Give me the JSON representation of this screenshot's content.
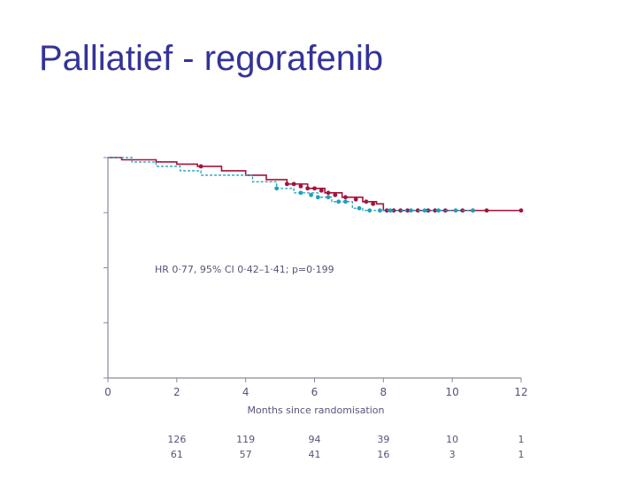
{
  "slide": {
    "title": "Palliatief - regorafenib"
  },
  "chart_data": {
    "type": "line",
    "title": "",
    "xlabel": "Months since randomisation",
    "ylabel": "",
    "xlim": [
      0,
      12
    ],
    "ylim": [
      0,
      1
    ],
    "x_ticks": [
      0,
      2,
      4,
      6,
      8,
      10,
      12
    ],
    "y_ticks": [
      0,
      0.25,
      0.5,
      0.75,
      1
    ],
    "grid": false,
    "legend": "none",
    "annotation": "HR 0·77, 95% CI 0·42–1·41; p=0·199",
    "colors": {
      "regorafenib": "#a3133b",
      "placebo": "#1e9fbf",
      "axis": "#8a8a99"
    },
    "series": [
      {
        "color": "#a3133b",
        "style": "solid",
        "steps": [
          [
            0,
            1.0
          ],
          [
            0.4,
            0.99
          ],
          [
            1.4,
            0.98
          ],
          [
            2.0,
            0.97
          ],
          [
            2.6,
            0.96
          ],
          [
            3.3,
            0.94
          ],
          [
            4.0,
            0.92
          ],
          [
            4.6,
            0.9
          ],
          [
            5.2,
            0.88
          ],
          [
            5.8,
            0.86
          ],
          [
            6.3,
            0.84
          ],
          [
            6.8,
            0.82
          ],
          [
            7.4,
            0.8
          ],
          [
            7.8,
            0.79
          ],
          [
            8.0,
            0.76
          ],
          [
            12.0,
            0.76
          ]
        ],
        "censored": [
          [
            2.7,
            0.96
          ],
          [
            5.2,
            0.88
          ],
          [
            5.4,
            0.88
          ],
          [
            5.6,
            0.87
          ],
          [
            5.8,
            0.86
          ],
          [
            6.0,
            0.86
          ],
          [
            6.2,
            0.85
          ],
          [
            6.4,
            0.84
          ],
          [
            6.6,
            0.83
          ],
          [
            6.9,
            0.82
          ],
          [
            7.2,
            0.81
          ],
          [
            7.5,
            0.8
          ],
          [
            7.7,
            0.79
          ],
          [
            8.1,
            0.76
          ],
          [
            8.3,
            0.76
          ],
          [
            8.5,
            0.76
          ],
          [
            8.7,
            0.76
          ],
          [
            9.0,
            0.76
          ],
          [
            9.3,
            0.76
          ],
          [
            9.5,
            0.76
          ],
          [
            9.8,
            0.76
          ],
          [
            10.3,
            0.76
          ],
          [
            10.6,
            0.76
          ],
          [
            11.0,
            0.76
          ],
          [
            12.0,
            0.76
          ]
        ]
      },
      {
        "color": "#1e9fbf",
        "style": "dashed",
        "steps": [
          [
            0,
            1.0
          ],
          [
            0.7,
            0.98
          ],
          [
            1.4,
            0.96
          ],
          [
            2.1,
            0.94
          ],
          [
            2.7,
            0.92
          ],
          [
            4.2,
            0.89
          ],
          [
            4.9,
            0.86
          ],
          [
            5.4,
            0.84
          ],
          [
            6.1,
            0.82
          ],
          [
            6.5,
            0.8
          ],
          [
            7.1,
            0.77
          ],
          [
            7.4,
            0.76
          ],
          [
            10.6,
            0.76
          ]
        ],
        "censored": [
          [
            4.9,
            0.86
          ],
          [
            5.6,
            0.84
          ],
          [
            5.9,
            0.83
          ],
          [
            6.1,
            0.82
          ],
          [
            6.4,
            0.82
          ],
          [
            6.7,
            0.8
          ],
          [
            6.9,
            0.8
          ],
          [
            7.3,
            0.77
          ],
          [
            7.6,
            0.76
          ],
          [
            7.9,
            0.76
          ],
          [
            8.2,
            0.76
          ],
          [
            8.8,
            0.76
          ],
          [
            9.2,
            0.76
          ],
          [
            9.6,
            0.76
          ],
          [
            10.1,
            0.76
          ],
          [
            10.6,
            0.76
          ]
        ]
      }
    ],
    "numbers_at_risk": {
      "x": [
        2,
        4,
        6,
        8,
        10,
        12
      ],
      "rows": [
        {
          "values": [
            "126",
            "119",
            "94",
            "39",
            "10",
            "1"
          ]
        },
        {
          "values": [
            "61",
            "57",
            "41",
            "16",
            "3",
            "1"
          ]
        }
      ]
    }
  }
}
